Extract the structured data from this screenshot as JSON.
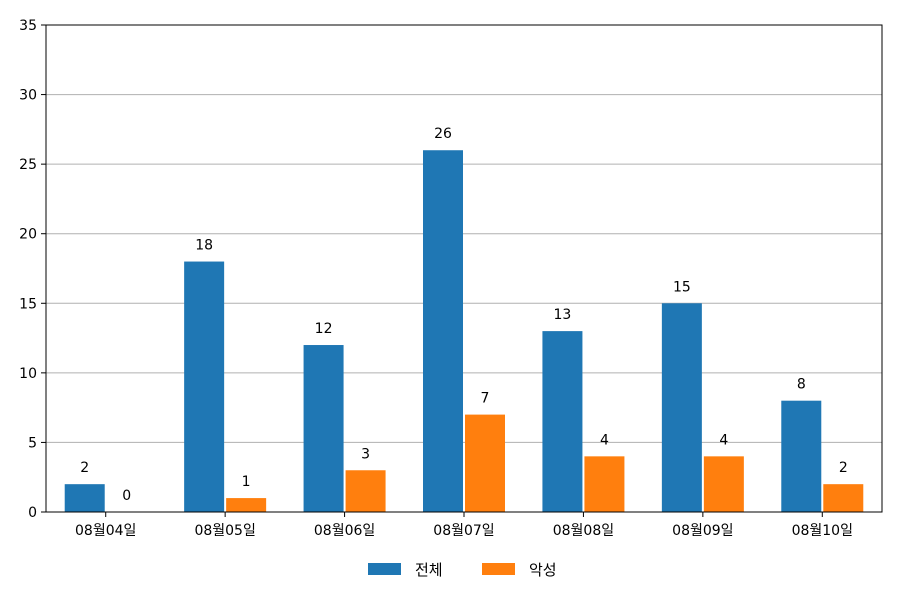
{
  "chart_data": {
    "type": "bar",
    "categories": [
      "08월04일",
      "08월05일",
      "08월06일",
      "08월07일",
      "08월08일",
      "08월09일",
      "08월10일"
    ],
    "series": [
      {
        "name": "전체",
        "color": "#1f77b4",
        "values": [
          2,
          18,
          12,
          26,
          13,
          15,
          8
        ]
      },
      {
        "name": "악성",
        "color": "#ff7f0e",
        "values": [
          0,
          1,
          3,
          7,
          4,
          4,
          2
        ]
      }
    ],
    "ylim": [
      0,
      35
    ],
    "yticks": [
      0,
      5,
      10,
      15,
      20,
      25,
      30,
      35
    ],
    "grid": "horizontal",
    "legend_position": "bottom-center"
  }
}
